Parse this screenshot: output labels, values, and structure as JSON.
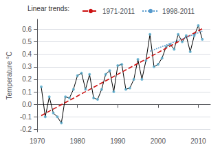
{
  "chart_data": {
    "type": "line",
    "ylabel": "Temperature °C",
    "x": [
      1971,
      1972,
      1973,
      1974,
      1975,
      1976,
      1977,
      1978,
      1979,
      1980,
      1981,
      1982,
      1983,
      1984,
      1985,
      1986,
      1987,
      1988,
      1989,
      1990,
      1991,
      1992,
      1993,
      1994,
      1995,
      1996,
      1997,
      1998,
      1999,
      2000,
      2001,
      2002,
      2003,
      2004,
      2005,
      2006,
      2007,
      2008,
      2009,
      2010,
      2011
    ],
    "xlim": [
      1970,
      2013
    ],
    "xticks": [
      1970,
      1980,
      1990,
      2000,
      2010
    ],
    "ylim": [
      -0.22,
      0.68
    ],
    "yticks": [
      -0.2,
      -0.1,
      {
        "value": 0,
        "label": "0.0"
      },
      0.1,
      0.2,
      0.3,
      0.4,
      0.5,
      0.6
    ],
    "grid": true,
    "legend": "top",
    "legend_title": "Linear trends:",
    "series": [
      {
        "type": "line",
        "color": "black",
        "line_style": "solid",
        "values": [
          0.14,
          -0.1,
          0.06,
          -0.07,
          -0.1,
          -0.15,
          0.06,
          0.05,
          0.12,
          0.23,
          0.25,
          0.12,
          0.24,
          0.05,
          0.04,
          0.12,
          0.24,
          0.27,
          0.1,
          0.31,
          0.32,
          0.12,
          0.13,
          0.2,
          0.36,
          0.2,
          0.35,
          0.56,
          0.3,
          0.32,
          0.37,
          0.46,
          0.48,
          0.44,
          0.56,
          0.5,
          0.55,
          0.42,
          0.55,
          0.63,
          0.52
        ]
      },
      {
        "type": "scatter",
        "color": "#55aacc",
        "marker": "circle",
        "values": [
          0.14,
          -0.1,
          0.06,
          -0.07,
          -0.1,
          -0.15,
          0.06,
          0.05,
          0.12,
          0.23,
          0.25,
          0.12,
          0.24,
          0.05,
          0.04,
          0.12,
          0.24,
          0.27,
          0.1,
          0.31,
          0.32,
          0.12,
          0.13,
          0.2,
          0.36,
          0.2,
          0.35,
          0.56,
          0.3,
          0.32,
          0.37,
          0.46,
          0.48,
          0.44,
          0.56,
          0.5,
          0.55,
          0.42,
          0.55,
          0.63,
          0.52
        ]
      },
      {
        "name": "1971-2011",
        "type": "line",
        "color": "#cc1111",
        "line_style": "dashed",
        "x": [
          1971,
          2011
        ],
        "values": [
          -0.09,
          0.605
        ]
      },
      {
        "name": "1998-2011",
        "type": "line",
        "color": "#5599cc",
        "line_style": "dotted",
        "x": [
          1998,
          2011
        ],
        "values": [
          0.425,
          0.585
        ]
      }
    ]
  }
}
